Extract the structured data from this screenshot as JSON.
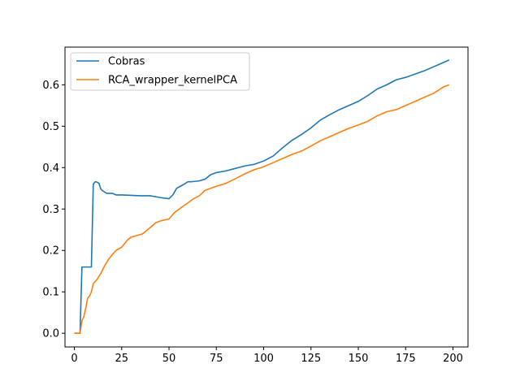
{
  "chart_data": {
    "type": "line",
    "xlim": [
      -4.95,
      207.95
    ],
    "ylim": [
      -0.033,
      0.691
    ],
    "xticks": [
      0,
      25,
      50,
      75,
      100,
      125,
      150,
      175,
      200
    ],
    "yticks": [
      0.0,
      0.1,
      0.2,
      0.3,
      0.4,
      0.5,
      0.6
    ],
    "ytick_labels": [
      "0.0",
      "0.1",
      "0.2",
      "0.3",
      "0.4",
      "0.5",
      "0.6"
    ],
    "grid": false,
    "legend_position": "upper-left",
    "series": [
      {
        "name": "Cobras",
        "color": "#1f77b4",
        "x": [
          0,
          2,
          3,
          4,
          9,
          10,
          11,
          12,
          13,
          14,
          15,
          17,
          20,
          22,
          25,
          30,
          35,
          40,
          45,
          48,
          50,
          52,
          54,
          56,
          58,
          60,
          62,
          66,
          69,
          72,
          75,
          80,
          85,
          90,
          95,
          100,
          105,
          110,
          115,
          120,
          125,
          130,
          135,
          140,
          145,
          150,
          155,
          160,
          165,
          170,
          175,
          180,
          185,
          190,
          195,
          198
        ],
        "y": [
          0.0,
          0.0,
          0.0,
          0.16,
          0.16,
          0.36,
          0.366,
          0.365,
          0.362,
          0.348,
          0.344,
          0.338,
          0.338,
          0.334,
          0.334,
          0.333,
          0.332,
          0.332,
          0.328,
          0.326,
          0.325,
          0.334,
          0.35,
          0.355,
          0.36,
          0.366,
          0.366,
          0.368,
          0.372,
          0.383,
          0.388,
          0.392,
          0.398,
          0.404,
          0.408,
          0.416,
          0.428,
          0.448,
          0.466,
          0.48,
          0.496,
          0.515,
          0.528,
          0.54,
          0.55,
          0.56,
          0.574,
          0.59,
          0.6,
          0.612,
          0.618,
          0.626,
          0.634,
          0.644,
          0.654,
          0.66
        ]
      },
      {
        "name": "RCA_wrapper_kernelPCA",
        "color": "#ff7f0e",
        "x": [
          0,
          2,
          3,
          4,
          5,
          6,
          7,
          8,
          9,
          10,
          12,
          14,
          16,
          18,
          20,
          22,
          25,
          28,
          30,
          33,
          36,
          40,
          43,
          46,
          50,
          53,
          56,
          60,
          63,
          66,
          69,
          72,
          75,
          80,
          85,
          90,
          95,
          100,
          105,
          110,
          115,
          120,
          125,
          130,
          135,
          140,
          145,
          150,
          155,
          160,
          165,
          170,
          175,
          180,
          185,
          190,
          195,
          198
        ],
        "y": [
          0.0,
          0.0,
          0.0,
          0.03,
          0.04,
          0.06,
          0.085,
          0.09,
          0.1,
          0.12,
          0.13,
          0.145,
          0.163,
          0.178,
          0.19,
          0.2,
          0.208,
          0.225,
          0.232,
          0.236,
          0.24,
          0.255,
          0.267,
          0.272,
          0.276,
          0.292,
          0.302,
          0.315,
          0.325,
          0.332,
          0.345,
          0.35,
          0.355,
          0.362,
          0.373,
          0.385,
          0.395,
          0.402,
          0.412,
          0.422,
          0.432,
          0.44,
          0.452,
          0.465,
          0.475,
          0.485,
          0.495,
          0.503,
          0.512,
          0.525,
          0.535,
          0.54,
          0.55,
          0.56,
          0.57,
          0.58,
          0.595,
          0.6
        ]
      }
    ]
  }
}
